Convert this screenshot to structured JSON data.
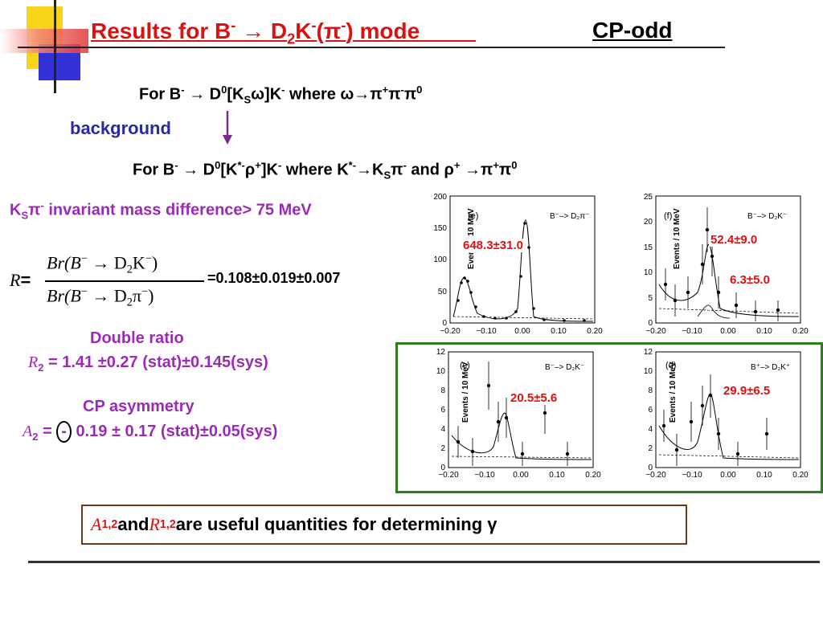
{
  "title": {
    "prefix": "Results for  B",
    "arrow": "→",
    "d": "D",
    "sub2": "2",
    "k": "K",
    "minus": "-",
    "pi": "(π",
    "close": ") mode",
    "cp": "CP-odd"
  },
  "line1": {
    "text_a": "For    B",
    "text_b": " → D",
    "sup0": "0",
    "text_c": "[K",
    "subS": "S",
    "text_d": "ω]K",
    "text_e": " where ω→π",
    "plus": "+",
    "minus": "-",
    "pi0": "π",
    "zero": "0"
  },
  "background_label": "background",
  "line2": {
    "text_a": "For    B",
    "text_b": " → D",
    "sup0": "0",
    "text_c": "[K",
    "star": "*-",
    "text_d": "ρ",
    "plus": "+",
    "text_e": "]K",
    "text_f": " where K",
    "text_g": "→K",
    "subS": "S",
    "text_h": "π",
    "text_i": "  and ρ",
    "text_j": " →π",
    "text_k": "π",
    "zero": "0"
  },
  "mass_cut": {
    "k": "K",
    "s": "S",
    "pi": "π",
    "minus": "-",
    "rest": " invariant mass difference> 75 MeV"
  },
  "ratio": {
    "r": "R",
    "eq": "=",
    "num": "Br(B",
    "num2": " → D",
    "num3": "K",
    "den": "Br(B",
    "den2": " → D",
    "den3": "π",
    "minus": "−",
    "two": "2",
    "close": ")",
    "value": "=0.108±0.019±0.007"
  },
  "double_ratio": {
    "label": "Double ratio",
    "symbol": "R",
    "sub": "2",
    "value": " = 1.41 ±0.27 (stat)±0.145(sys)"
  },
  "cp_asym": {
    "label": "CP asymmetry",
    "symbol": "A",
    "sub": "2",
    "eq": " = ",
    "sign": "-",
    "value": " 0.19 ± 0.17 (stat)±0.05(sys)"
  },
  "conclusion": {
    "a": "A",
    "sub": "1,2",
    "and": " and ",
    "r": "R",
    "rest": " are useful  quantities for determining γ"
  },
  "plots": {
    "ylabel": "Events / 10 MeV",
    "xticks": [
      "−0.20",
      "−0.10",
      "0.00",
      "0.10",
      "0.20"
    ],
    "e": {
      "tag": "(e)",
      "label": "B⁻–> D₂π⁻",
      "yticks": [
        "0",
        "50",
        "100",
        "150",
        "200"
      ],
      "yield": "648.3±31.0"
    },
    "f": {
      "tag": "(f)",
      "label": "B⁻–> D₂K⁻",
      "yticks": [
        "0",
        "5",
        "10",
        "15",
        "20",
        "25"
      ],
      "yield1": "52.4±9.0",
      "yield2": "6.3±5.0"
    },
    "c": {
      "tag": "(c)",
      "label": "B⁻–> D₂K⁻",
      "yticks": [
        "0",
        "2",
        "4",
        "6",
        "8",
        "10",
        "12"
      ],
      "yield": "20.5±5.6"
    },
    "d": {
      "tag": "(d)",
      "label": "B⁺–> D₂K⁺",
      "yticks": [
        "0",
        "2",
        "4",
        "6",
        "8",
        "10",
        "12"
      ],
      "yield": "29.9±6.5"
    }
  },
  "colors": {
    "title_red": "#d81313",
    "blue": "#2a2aa5",
    "purple": "#9b2bb5",
    "green_frame": "#2e7d1c",
    "brown_frame": "#6b3a16"
  }
}
